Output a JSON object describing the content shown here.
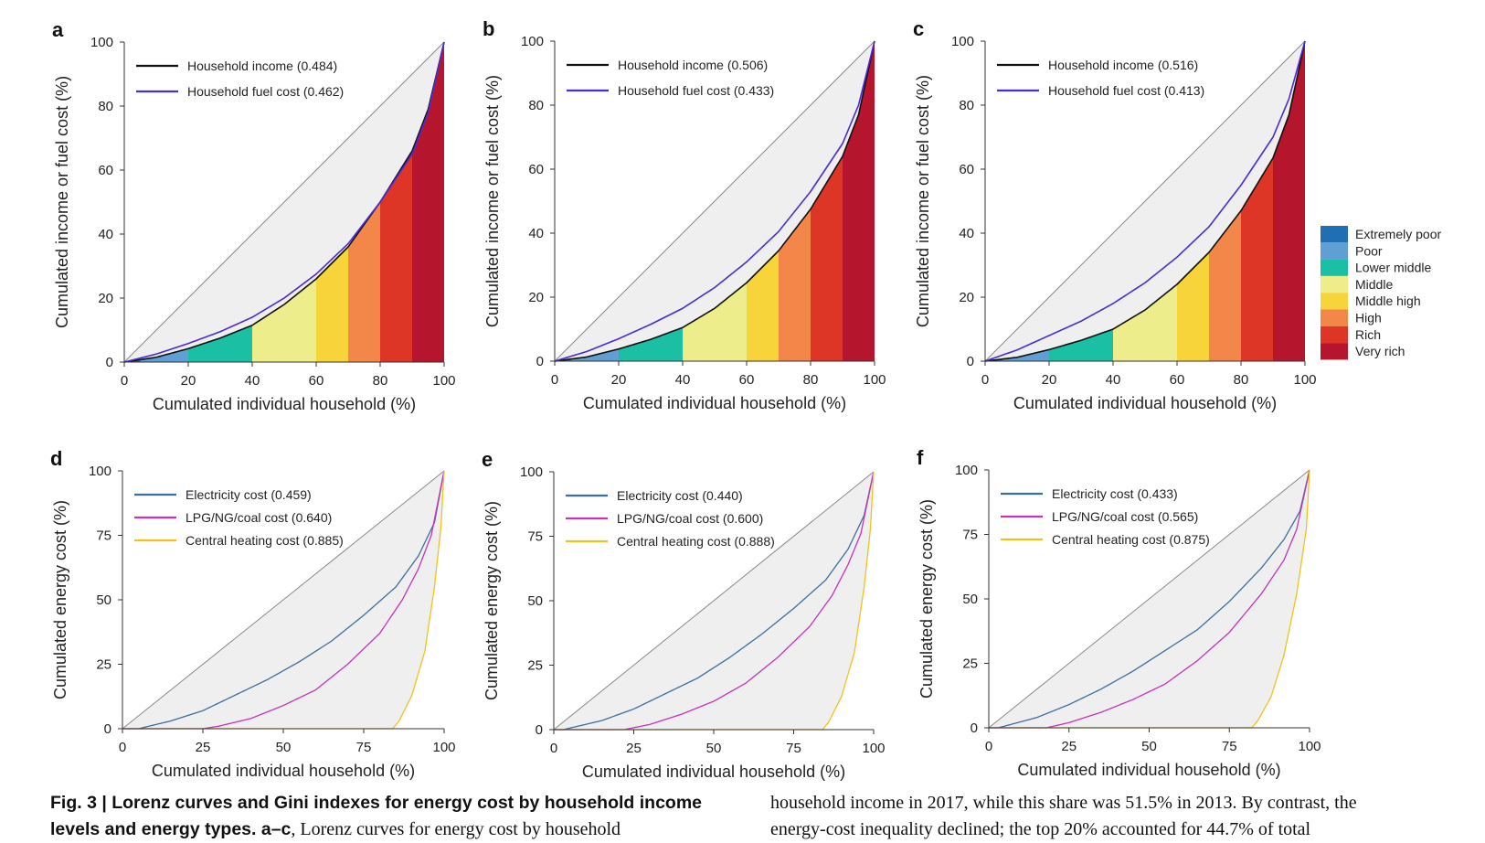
{
  "income_group_legend": {
    "items": [
      {
        "label": "Extremely poor",
        "color": "#1f6fb2"
      },
      {
        "label": "Poor",
        "color": "#5f9fd3"
      },
      {
        "label": "Lower middle",
        "color": "#1bbfa4"
      },
      {
        "label": "Middle",
        "color": "#eeed8c"
      },
      {
        "label": "Middle high",
        "color": "#f7d43a"
      },
      {
        "label": "High",
        "color": "#f3874a"
      },
      {
        "label": "Rich",
        "color": "#dd3526"
      },
      {
        "label": "Very rich",
        "color": "#b5152d"
      }
    ]
  },
  "caption": {
    "left_bold": "Fig. 3 | Lorenz curves and Gini indexes for energy cost by household income levels and energy types. a–c",
    "left_bold_line1": "Fig. 3 | Lorenz curves and Gini indexes for energy cost by household income",
    "left_bold_line2": "levels and energy types. a–c",
    "left_rest_line2": ", Lorenz curves for energy cost by household",
    "right_line1": "household income in 2017, while this share was 51.5% in 2013. By contrast, the",
    "right_line2": "energy-cost inequality declined; the top 20% accounted for 44.7% of total"
  },
  "chart_data": [
    {
      "panel": "a",
      "type": "line",
      "xlabel": "Cumulated individual household (%)",
      "ylabel": "Cumulated income or fuel cost (%)",
      "xlim": [
        0,
        100
      ],
      "ylim": [
        0,
        100
      ],
      "xticks": [
        "0",
        "20",
        "40",
        "60",
        "80",
        "100"
      ],
      "yticks": [
        "0",
        "20",
        "40",
        "60",
        "80",
        "100"
      ],
      "band_edges": [
        0,
        5,
        20,
        40,
        60,
        70,
        80,
        90,
        100
      ],
      "series": [
        {
          "name": "Household income (0.484)",
          "color": "#111111",
          "x": [
            0,
            10,
            20,
            30,
            40,
            50,
            60,
            70,
            80,
            90,
            95,
            100
          ],
          "y": [
            0,
            1.5,
            4.2,
            7.5,
            11.5,
            18,
            26,
            36,
            50,
            66,
            79,
            100
          ]
        },
        {
          "name": "Household fuel cost (0.462)",
          "color": "#4a2bd6",
          "x": [
            0,
            10,
            20,
            30,
            40,
            50,
            60,
            70,
            80,
            90,
            95,
            100
          ],
          "y": [
            0,
            2.5,
            5.8,
            9.5,
            14,
            20,
            27.5,
            37,
            50,
            65,
            78,
            100
          ]
        }
      ]
    },
    {
      "panel": "b",
      "type": "line",
      "xlabel": "Cumulated individual household (%)",
      "ylabel": "Cumulated income or fuel cost (%)",
      "xlim": [
        0,
        100
      ],
      "ylim": [
        0,
        100
      ],
      "xticks": [
        "0",
        "20",
        "40",
        "60",
        "80",
        "100"
      ],
      "yticks": [
        "0",
        "20",
        "40",
        "60",
        "80",
        "100"
      ],
      "band_edges": [
        0,
        5,
        20,
        40,
        60,
        70,
        80,
        90,
        100
      ],
      "series": [
        {
          "name": "Household income (0.506)",
          "color": "#111111",
          "x": [
            0,
            10,
            20,
            30,
            40,
            50,
            60,
            70,
            80,
            90,
            95,
            100
          ],
          "y": [
            0,
            1.3,
            3.8,
            6.8,
            10.5,
            16.5,
            24.5,
            34.5,
            47.5,
            64,
            77,
            100
          ]
        },
        {
          "name": "Household fuel cost (0.433)",
          "color": "#4a2bd6",
          "x": [
            0,
            10,
            20,
            30,
            40,
            50,
            60,
            70,
            80,
            90,
            95,
            100
          ],
          "y": [
            0,
            3,
            7,
            11.5,
            16.5,
            23,
            31,
            40.5,
            53,
            68,
            80,
            100
          ]
        }
      ]
    },
    {
      "panel": "c",
      "type": "line",
      "xlabel": "Cumulated individual household (%)",
      "ylabel": "Cumulated income or fuel cost (%)",
      "xlim": [
        0,
        100
      ],
      "ylim": [
        0,
        100
      ],
      "xticks": [
        "0",
        "20",
        "40",
        "60",
        "80",
        "100"
      ],
      "yticks": [
        "0",
        "20",
        "40",
        "60",
        "80",
        "100"
      ],
      "band_edges": [
        0,
        5,
        20,
        40,
        60,
        70,
        80,
        90,
        100
      ],
      "series": [
        {
          "name": "Household income (0.516)",
          "color": "#111111",
          "x": [
            0,
            10,
            20,
            30,
            40,
            50,
            60,
            70,
            80,
            90,
            95,
            100
          ],
          "y": [
            0,
            1.2,
            3.6,
            6.5,
            10,
            16,
            24,
            34,
            47,
            63.5,
            77,
            100
          ]
        },
        {
          "name": "Household fuel cost (0.413)",
          "color": "#4a2bd6",
          "x": [
            0,
            10,
            20,
            30,
            40,
            50,
            60,
            70,
            80,
            90,
            95,
            100
          ],
          "y": [
            0,
            3.5,
            8,
            12.5,
            18,
            24.5,
            32.5,
            42,
            55,
            70,
            82,
            100
          ]
        }
      ]
    },
    {
      "panel": "d",
      "type": "line",
      "xlabel": "Cumulated individual household (%)",
      "ylabel": "Cumulated energy cost (%)",
      "xlim": [
        0,
        100
      ],
      "ylim": [
        0,
        100
      ],
      "xticks": [
        "0",
        "25",
        "50",
        "75",
        "100"
      ],
      "yticks": [
        "0",
        "25",
        "50",
        "75",
        "100"
      ],
      "series": [
        {
          "name": "Electricity cost (0.459)",
          "color": "#3d6e9e",
          "x": [
            0,
            5,
            15,
            25,
            35,
            45,
            55,
            65,
            75,
            85,
            92,
            97,
            100
          ],
          "y": [
            0,
            0,
            3,
            7,
            13,
            19,
            26,
            34,
            44,
            55,
            67,
            80,
            100
          ]
        },
        {
          "name": "LPG/NG/coal cost (0.640)",
          "color": "#c533b8",
          "x": [
            0,
            25,
            30,
            40,
            50,
            60,
            70,
            80,
            87,
            92,
            96,
            100
          ],
          "y": [
            0,
            0,
            1,
            4,
            9,
            15,
            25,
            37,
            50,
            62,
            75,
            100
          ]
        },
        {
          "name": "Central heating cost (0.885)",
          "color": "#f2c21b",
          "x": [
            0,
            84,
            86,
            90,
            94,
            97,
            99,
            100
          ],
          "y": [
            0,
            0,
            3,
            13,
            30,
            55,
            78,
            100
          ]
        }
      ]
    },
    {
      "panel": "e",
      "type": "line",
      "xlabel": "Cumulated individual household (%)",
      "ylabel": "Cumulated energy cost (%)",
      "xlim": [
        0,
        100
      ],
      "ylim": [
        0,
        100
      ],
      "xticks": [
        "0",
        "25",
        "50",
        "75",
        "100"
      ],
      "yticks": [
        "0",
        "25",
        "50",
        "75",
        "100"
      ],
      "series": [
        {
          "name": "Electricity cost (0.440)",
          "color": "#3d6e9e",
          "x": [
            0,
            3,
            15,
            25,
            35,
            45,
            55,
            65,
            75,
            85,
            92,
            97,
            100
          ],
          "y": [
            0,
            0,
            3.5,
            8,
            14,
            20,
            28,
            37,
            47,
            58,
            70,
            83,
            100
          ]
        },
        {
          "name": "LPG/NG/coal cost (0.600)",
          "color": "#c533b8",
          "x": [
            0,
            22,
            30,
            40,
            50,
            60,
            70,
            80,
            87,
            92,
            96,
            100
          ],
          "y": [
            0,
            0,
            2,
            6,
            11,
            18,
            28,
            40,
            52,
            64,
            76,
            100
          ]
        },
        {
          "name": "Central heating cost (0.888)",
          "color": "#f2c21b",
          "x": [
            0,
            84,
            86,
            90,
            94,
            97,
            99,
            100
          ],
          "y": [
            0,
            0,
            3,
            13,
            30,
            55,
            78,
            100
          ]
        }
      ]
    },
    {
      "panel": "f",
      "type": "line",
      "xlabel": "Cumulated individual household (%)",
      "ylabel": "Cumulated energy cost (%)",
      "xlim": [
        0,
        100
      ],
      "ylim": [
        0,
        100
      ],
      "xticks": [
        "0",
        "25",
        "50",
        "75",
        "100"
      ],
      "yticks": [
        "0",
        "25",
        "50",
        "75",
        "100"
      ],
      "series": [
        {
          "name": "Electricity cost (0.433)",
          "color": "#3d6e9e",
          "x": [
            0,
            3,
            15,
            25,
            35,
            45,
            55,
            65,
            75,
            85,
            92,
            97,
            100
          ],
          "y": [
            0,
            0,
            4,
            9,
            15,
            22,
            30,
            38,
            49,
            62,
            73,
            84,
            100
          ]
        },
        {
          "name": "LPG/NG/coal cost (0.565)",
          "color": "#c533b8",
          "x": [
            0,
            18,
            25,
            35,
            45,
            55,
            65,
            75,
            85,
            92,
            96,
            100
          ],
          "y": [
            0,
            0,
            2,
            6,
            11,
            17,
            26,
            37,
            52,
            65,
            77,
            100
          ]
        },
        {
          "name": "Central heating cost (0.875)",
          "color": "#f2c21b",
          "x": [
            0,
            82,
            84,
            88,
            92,
            96,
            99,
            100
          ],
          "y": [
            0,
            0,
            3,
            12,
            28,
            52,
            77,
            100
          ]
        }
      ]
    }
  ]
}
